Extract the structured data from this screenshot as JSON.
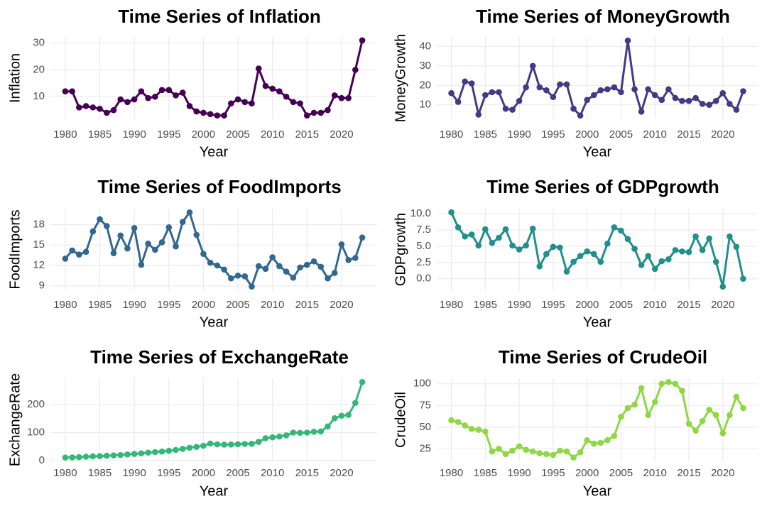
{
  "chart_data": [
    {
      "type": "line",
      "title": "Time Series of Inflation",
      "x_label": "Year",
      "y_label": "Inflation",
      "color": "#440154",
      "x": [
        1980,
        1981,
        1982,
        1983,
        1984,
        1985,
        1986,
        1987,
        1988,
        1989,
        1990,
        1991,
        1992,
        1993,
        1994,
        1995,
        1996,
        1997,
        1998,
        1999,
        2000,
        2001,
        2002,
        2003,
        2004,
        2005,
        2006,
        2007,
        2008,
        2009,
        2010,
        2011,
        2012,
        2013,
        2014,
        2015,
        2016,
        2017,
        2018,
        2019,
        2020,
        2021,
        2022,
        2023
      ],
      "values": [
        12,
        12,
        6,
        6.5,
        6,
        5.5,
        4,
        5,
        9,
        8,
        9,
        12,
        9.5,
        10,
        12.5,
        12.5,
        10.5,
        11.5,
        6.5,
        4.5,
        4,
        3.5,
        3,
        3,
        7.5,
        9,
        8,
        7.5,
        20.5,
        14,
        13,
        12,
        10,
        8,
        7.5,
        3,
        4,
        4,
        5,
        10.5,
        9.5,
        9.5,
        20,
        31
      ],
      "xlim": [
        1977.85,
        2025.15
      ],
      "xticks": [
        1980,
        1985,
        1990,
        1995,
        2000,
        2005,
        2010,
        2015,
        2020
      ],
      "ylim": [
        1.6,
        32.3
      ],
      "yticks": [
        10,
        20,
        30
      ],
      "grid": true
    },
    {
      "type": "line",
      "title": "Time Series of MoneyGrowth",
      "x_label": "Year",
      "y_label": "MoneyGrowth",
      "color": "#443A83",
      "x": [
        1980,
        1981,
        1982,
        1983,
        1984,
        1985,
        1986,
        1987,
        1988,
        1989,
        1990,
        1991,
        1992,
        1993,
        1994,
        1995,
        1996,
        1997,
        1998,
        1999,
        2000,
        2001,
        2002,
        2003,
        2004,
        2005,
        2006,
        2007,
        2008,
        2009,
        2010,
        2011,
        2012,
        2013,
        2014,
        2015,
        2016,
        2017,
        2018,
        2019,
        2020,
        2021,
        2022,
        2023
      ],
      "values": [
        16,
        11.5,
        22,
        21,
        5,
        15,
        16.5,
        16.5,
        8,
        7.5,
        12,
        19,
        30,
        19,
        17.5,
        14,
        20.5,
        20.5,
        8,
        4.5,
        12.5,
        15,
        17.5,
        18,
        19,
        16.5,
        43,
        18,
        6.5,
        18,
        15,
        12.5,
        18,
        13.5,
        12,
        12,
        13.5,
        10.5,
        10,
        12,
        16,
        10.5,
        7.5,
        17
      ],
      "xlim": [
        1977.85,
        2025.15
      ],
      "xticks": [
        1980,
        1985,
        1990,
        1995,
        2000,
        2005,
        2010,
        2015,
        2020
      ],
      "ylim": [
        2.6,
        44.9
      ],
      "yticks": [
        10,
        20,
        30,
        40
      ],
      "grid": true
    },
    {
      "type": "line",
      "title": "Time Series of FoodImports",
      "x_label": "Year",
      "y_label": "FoodImports",
      "color": "#31688E",
      "x": [
        1980,
        1981,
        1982,
        1983,
        1984,
        1985,
        1986,
        1987,
        1988,
        1989,
        1990,
        1991,
        1992,
        1993,
        1994,
        1995,
        1996,
        1997,
        1998,
        1999,
        2000,
        2001,
        2002,
        2003,
        2004,
        2005,
        2006,
        2007,
        2008,
        2009,
        2010,
        2011,
        2012,
        2013,
        2014,
        2015,
        2016,
        2017,
        2018,
        2019,
        2020,
        2021,
        2022,
        2023
      ],
      "values": [
        13,
        14.2,
        13.6,
        14,
        17,
        18.8,
        17.8,
        13.8,
        16.4,
        14.5,
        17.5,
        12.1,
        15.2,
        14.3,
        15.4,
        17.6,
        14.8,
        18.4,
        19.8,
        16.5,
        13.7,
        12.4,
        12,
        11.4,
        10.1,
        10.5,
        10.4,
        8.9,
        11.9,
        11.5,
        13.2,
        11.9,
        11.1,
        10.2,
        11.7,
        12.1,
        12.6,
        11.8,
        10.1,
        10.9,
        15.1,
        12.8,
        13.1,
        16.1
      ],
      "xlim": [
        1977.85,
        2025.15
      ],
      "xticks": [
        1980,
        1985,
        1990,
        1995,
        2000,
        2005,
        2010,
        2015,
        2020
      ],
      "ylim": [
        8.35,
        20.35
      ],
      "yticks": [
        9,
        12,
        15,
        18
      ],
      "grid": true
    },
    {
      "type": "line",
      "title": "Time Series of GDPgrowth",
      "x_label": "Year",
      "y_label": "GDPgrowth",
      "color": "#21908C",
      "x": [
        1980,
        1981,
        1982,
        1983,
        1984,
        1985,
        1986,
        1987,
        1988,
        1989,
        1990,
        1991,
        1992,
        1993,
        1994,
        1995,
        1996,
        1997,
        1998,
        1999,
        2000,
        2001,
        2002,
        2003,
        2004,
        2005,
        2006,
        2007,
        2008,
        2009,
        2010,
        2011,
        2012,
        2013,
        2014,
        2015,
        2016,
        2017,
        2018,
        2019,
        2020,
        2021,
        2022,
        2023
      ],
      "values": [
        10.2,
        7.9,
        6.5,
        6.8,
        5.1,
        7.6,
        5.5,
        6.3,
        7.6,
        5.1,
        4.5,
        5.1,
        7.7,
        1.9,
        3.8,
        4.9,
        4.8,
        1.1,
        2.6,
        3.5,
        4.2,
        3.8,
        2.6,
        5.4,
        7.9,
        7.4,
        6.1,
        4.6,
        2.1,
        3.5,
        1.5,
        2.7,
        3,
        4.4,
        4.2,
        4.1,
        6.5,
        4.4,
        6.2,
        2.6,
        -1.2,
        6.5,
        4.9,
        0
      ],
      "xlim": [
        1977.85,
        2025.15
      ],
      "xticks": [
        1980,
        1985,
        1990,
        1995,
        2000,
        2005,
        2010,
        2015,
        2020
      ],
      "ylim": [
        -1.77,
        10.77
      ],
      "yticks": [
        {
          "value": 0,
          "label": "0.0"
        },
        2.5,
        {
          "value": 5,
          "label": "5.0"
        },
        7.5,
        {
          "value": 10,
          "label": "10.0"
        }
      ],
      "grid": true
    },
    {
      "type": "line",
      "title": "Time Series of ExchangeRate",
      "x_label": "Year",
      "y_label": "ExchangeRate",
      "color": "#35B779",
      "x": [
        1980,
        1981,
        1982,
        1983,
        1984,
        1985,
        1986,
        1987,
        1988,
        1989,
        1990,
        1991,
        1992,
        1993,
        1994,
        1995,
        1996,
        1997,
        1998,
        1999,
        2000,
        2001,
        2002,
        2003,
        2004,
        2005,
        2006,
        2007,
        2008,
        2009,
        2010,
        2011,
        2012,
        2013,
        2014,
        2015,
        2016,
        2017,
        2018,
        2019,
        2020,
        2021,
        2022,
        2023
      ],
      "values": [
        11,
        11.5,
        12.5,
        14,
        15.5,
        16,
        17.5,
        18.5,
        20,
        22,
        24,
        26,
        28.5,
        30.5,
        32.5,
        35,
        38,
        42,
        46,
        49,
        53,
        61,
        58,
        57,
        57.5,
        58.5,
        59.5,
        60,
        67,
        80,
        83,
        86,
        90,
        100,
        99,
        100,
        103,
        104,
        122,
        151,
        160,
        163,
        206,
        280
      ],
      "xlim": [
        1977.85,
        2025.15
      ],
      "xticks": [
        1980,
        1985,
        1990,
        1995,
        2000,
        2005,
        2010,
        2015,
        2020
      ],
      "ylim": [
        -2.45,
        293.45
      ],
      "yticks": [
        0,
        100,
        200
      ],
      "grid": true
    },
    {
      "type": "line",
      "title": "Time Series of CrudeOil",
      "x_label": "Year",
      "y_label": "CrudeOil",
      "color": "#8FD744",
      "x": [
        1980,
        1981,
        1982,
        1983,
        1984,
        1985,
        1986,
        1987,
        1988,
        1989,
        1990,
        1991,
        1992,
        1993,
        1994,
        1995,
        1996,
        1997,
        1998,
        1999,
        2000,
        2001,
        2002,
        2003,
        2004,
        2005,
        2006,
        2007,
        2008,
        2009,
        2010,
        2011,
        2012,
        2013,
        2014,
        2015,
        2016,
        2017,
        2018,
        2019,
        2020,
        2021,
        2022,
        2023
      ],
      "values": [
        58,
        56,
        52,
        48,
        47,
        45,
        22,
        25,
        19,
        23,
        28,
        24,
        22,
        20,
        19,
        18,
        23,
        22,
        15,
        21,
        35,
        31,
        32,
        35,
        40,
        62,
        72,
        76,
        95,
        64,
        79,
        100,
        102,
        100,
        92,
        54,
        46,
        57,
        70,
        64,
        43,
        64,
        85,
        72
      ],
      "xlim": [
        1977.85,
        2025.15
      ],
      "xticks": [
        1980,
        1985,
        1990,
        1995,
        2000,
        2005,
        2010,
        2015,
        2020
      ],
      "ylim": [
        10.65,
        106.35
      ],
      "yticks": [
        25,
        50,
        75,
        100
      ],
      "grid": true
    }
  ]
}
